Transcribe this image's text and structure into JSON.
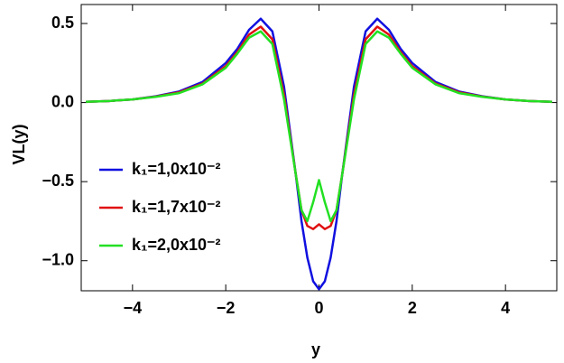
{
  "chart_data": {
    "type": "line",
    "xlabel": "y",
    "ylabel": "VL(y)",
    "x": [
      -5,
      -4.5,
      -4,
      -3.5,
      -3,
      -2.5,
      -2,
      -1.75,
      -1.5,
      -1.25,
      -1,
      -0.75,
      -0.5,
      -0.375,
      -0.25,
      -0.125,
      0,
      0.125,
      0.25,
      0.375,
      0.5,
      0.75,
      1,
      1.25,
      1.5,
      1.75,
      2,
      2.5,
      3,
      3.5,
      4,
      4.5,
      5
    ],
    "series": [
      {
        "name": "k₁=1,0x10⁻²",
        "color": "#1010e0",
        "values": [
          0.005,
          0.01,
          0.02,
          0.04,
          0.07,
          0.13,
          0.25,
          0.34,
          0.46,
          0.53,
          0.45,
          0.1,
          -0.45,
          -0.75,
          -0.98,
          -1.13,
          -1.18,
          -1.13,
          -0.98,
          -0.75,
          -0.45,
          0.1,
          0.45,
          0.53,
          0.46,
          0.34,
          0.25,
          0.13,
          0.07,
          0.04,
          0.02,
          0.01,
          0.005
        ]
      },
      {
        "name": "k₁=1,7x10⁻²",
        "color": "#e01010",
        "values": [
          0.005,
          0.01,
          0.02,
          0.038,
          0.065,
          0.12,
          0.23,
          0.32,
          0.43,
          0.48,
          0.4,
          0.05,
          -0.45,
          -0.68,
          -0.78,
          -0.8,
          -0.77,
          -0.8,
          -0.78,
          -0.68,
          -0.45,
          0.05,
          0.4,
          0.48,
          0.43,
          0.32,
          0.23,
          0.12,
          0.065,
          0.038,
          0.02,
          0.01,
          0.005
        ]
      },
      {
        "name": "k₁=2,0x10⁻²",
        "color": "#22e022",
        "values": [
          0.005,
          0.01,
          0.02,
          0.036,
          0.06,
          0.115,
          0.22,
          0.31,
          0.41,
          0.45,
          0.37,
          0.02,
          -0.45,
          -0.68,
          -0.75,
          -0.63,
          -0.49,
          -0.63,
          -0.75,
          -0.68,
          -0.45,
          0.02,
          0.37,
          0.45,
          0.41,
          0.31,
          0.22,
          0.115,
          0.06,
          0.036,
          0.02,
          0.01,
          0.005
        ]
      }
    ],
    "xlim": [
      -5.1,
      5.1
    ],
    "ylim": [
      -1.19,
      0.62
    ],
    "xticks": [
      {
        "value": -4,
        "label": "−4"
      },
      {
        "value": -2,
        "label": "−2"
      },
      0,
      2,
      4
    ],
    "yticks": [
      {
        "value": -1,
        "label": "−1.0"
      },
      {
        "value": -0.5,
        "label": "−0.5"
      },
      {
        "value": 0,
        "label": "0.0"
      },
      0.5
    ],
    "grid": false,
    "legend": "left"
  }
}
